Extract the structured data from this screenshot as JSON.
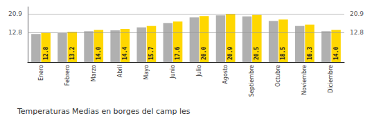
{
  "chart_data": {
    "type": "bar",
    "title": "Temperaturas Medias en borges del camp les",
    "categories": [
      "Enero",
      "Febrero",
      "Marzo",
      "Abril",
      "Mayo",
      "Junio",
      "Julio",
      "Agosto",
      "Septiembre",
      "Octubre",
      "Noviembre",
      "Diciembre"
    ],
    "series": [
      {
        "color": "#B0B0B0",
        "values": [
          12.2,
          12.6,
          13.4,
          13.8,
          15.1,
          17.0,
          19.4,
          20.3,
          19.9,
          17.9,
          15.7,
          13.4
        ]
      },
      {
        "color": "#FFD700",
        "values": [
          12.8,
          13.2,
          14.0,
          14.4,
          15.7,
          17.6,
          20.0,
          20.9,
          20.5,
          18.5,
          16.3,
          14.0
        ],
        "value_labels": [
          "12.8",
          "13.2",
          "14.0",
          "14.4",
          "15.7",
          "17.6",
          "20.0",
          "20.9",
          "20.5",
          "18.5",
          "16.3",
          "14.0"
        ],
        "data_labels": true
      }
    ],
    "ylim": [
      0,
      24.0
    ],
    "yticks": [
      12.8,
      20.9
    ],
    "y2lim": [
      0,
      24.0
    ],
    "y2ticks": [
      12.8,
      20.9
    ],
    "grid": true
  }
}
